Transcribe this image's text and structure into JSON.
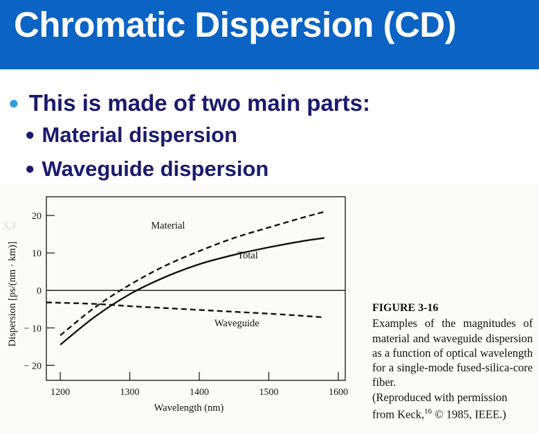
{
  "slide": {
    "title": "Chromatic Dispersion (CD)",
    "bullet_main": "This is made of two main parts:",
    "sub_bullets": [
      "Material dispersion",
      "Waveguide dispersion"
    ]
  },
  "figure": {
    "label": "FIGURE 3-16",
    "caption": "Examples of the magnitudes of material and waveguide dispersion as a function of optical wavelength for a single-mode fused-silica-core fiber.",
    "credit_line1": "(Reproduced with permission",
    "credit_line2_prefix": "from Keck,",
    "credit_ref": "16",
    "credit_line2_suffix": "© 1985, IEEE.)"
  },
  "colors": {
    "title_bar": "#0b63c4",
    "bullet_text": "#1a1a6e",
    "bullet_dot": "#2f9fd8"
  },
  "chart_data": {
    "type": "line",
    "xlabel": "Wavelength (nm)",
    "ylabel": "Dispersion [ps/(nm · km)]",
    "xlim": [
      1180,
      1610
    ],
    "ylim": [
      -24,
      25
    ],
    "xticks": [
      1200,
      1300,
      1400,
      1500,
      1600
    ],
    "yticks": [
      20,
      10,
      0,
      -10,
      -20
    ],
    "ytick_labels": [
      "20",
      "10",
      "0",
      "− 10",
      "− 20"
    ],
    "zero_line": true,
    "series": [
      {
        "name": "Material",
        "style": "dashed",
        "x": [
          1200,
          1250,
          1300,
          1350,
          1400,
          1450,
          1500,
          1550,
          1580
        ],
        "y": [
          -12,
          -4.5,
          1.5,
          6.5,
          10.5,
          14,
          16.8,
          19.5,
          21
        ]
      },
      {
        "name": "Total",
        "style": "solid",
        "x": [
          1200,
          1250,
          1300,
          1350,
          1400,
          1450,
          1500,
          1550,
          1580
        ],
        "y": [
          -14.5,
          -7,
          -1,
          3.5,
          7,
          9.5,
          11.5,
          13.2,
          14
        ]
      },
      {
        "name": "Waveguide",
        "style": "dashed",
        "x": [
          1180,
          1250,
          1300,
          1350,
          1400,
          1450,
          1500,
          1550,
          1580
        ],
        "y": [
          -3.2,
          -3.6,
          -4.2,
          -4.7,
          -5.2,
          -5.7,
          -6.2,
          -6.8,
          -7.2
        ]
      }
    ]
  }
}
